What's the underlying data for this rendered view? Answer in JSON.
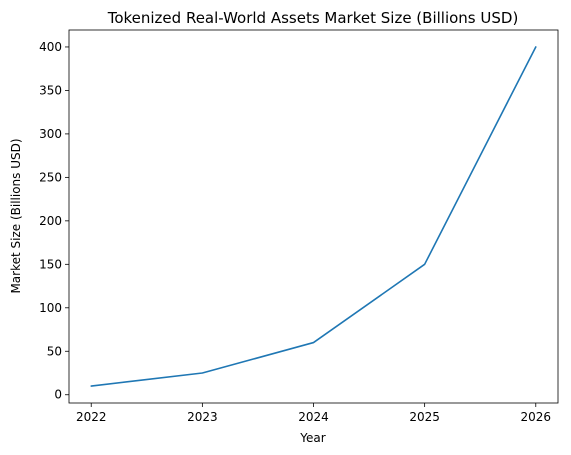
{
  "chart_data": {
    "type": "line",
    "title": "Tokenized Real-World Assets Market Size (Billions USD)",
    "xlabel": "Year",
    "ylabel": "Market Size (Billions USD)",
    "x": [
      2022,
      2023,
      2024,
      2025,
      2026
    ],
    "series": [
      {
        "values": [
          10,
          25,
          60,
          150,
          400
        ],
        "color": "#1f77b4"
      }
    ],
    "xticks": [
      "2022",
      "2023",
      "2024",
      "2025",
      "2026"
    ],
    "yticks": [
      "0",
      "50",
      "100",
      "150",
      "200",
      "250",
      "300",
      "350",
      "400"
    ],
    "xlim": [
      2021.8,
      2026.2
    ],
    "ylim": [
      -9.5,
      419.5
    ],
    "grid": false
  }
}
